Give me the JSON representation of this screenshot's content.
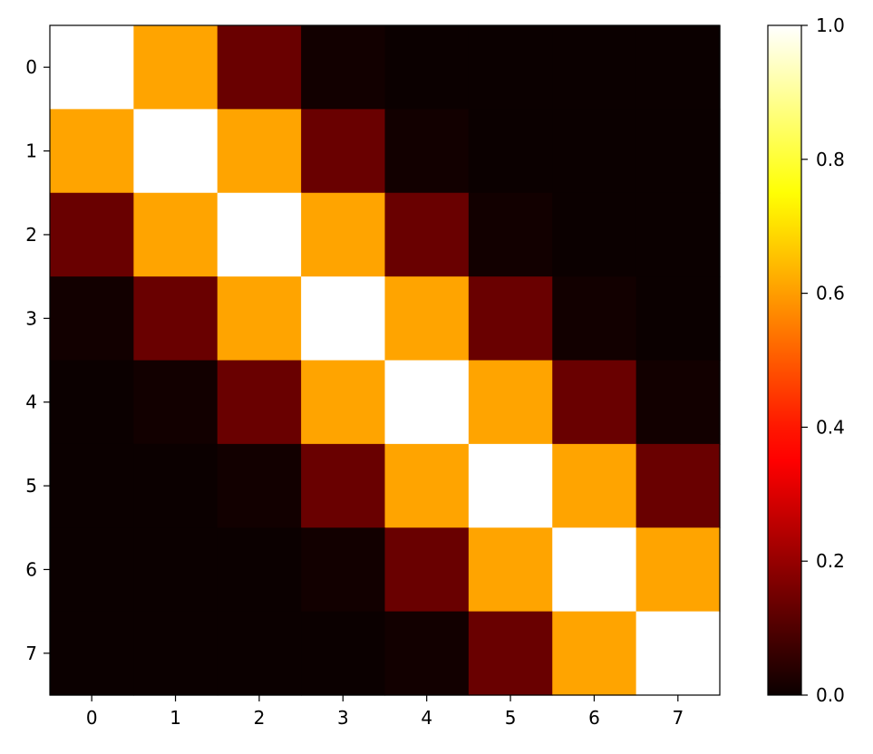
{
  "chart_data": {
    "type": "heatmap",
    "colormap": "hot",
    "x_ticks": [
      "0",
      "1",
      "2",
      "3",
      "4",
      "5",
      "6",
      "7"
    ],
    "y_ticks": [
      "0",
      "1",
      "2",
      "3",
      "4",
      "5",
      "6",
      "7"
    ],
    "colorbar": {
      "range": [
        0.0,
        1.0
      ],
      "ticks": [
        "0.0",
        "0.2",
        "0.4",
        "0.6",
        "0.8",
        "1.0"
      ]
    },
    "values": [
      [
        1.0,
        0.61,
        0.135,
        0.011,
        0.0003,
        0.0,
        0.0,
        0.0
      ],
      [
        0.61,
        1.0,
        0.61,
        0.135,
        0.011,
        0.0003,
        0.0,
        0.0
      ],
      [
        0.135,
        0.61,
        1.0,
        0.61,
        0.135,
        0.011,
        0.0003,
        0.0
      ],
      [
        0.011,
        0.135,
        0.61,
        1.0,
        0.61,
        0.135,
        0.011,
        0.0003
      ],
      [
        0.0003,
        0.011,
        0.135,
        0.61,
        1.0,
        0.61,
        0.135,
        0.011
      ],
      [
        0.0,
        0.0003,
        0.011,
        0.135,
        0.61,
        1.0,
        0.61,
        0.135
      ],
      [
        0.0,
        0.0,
        0.0003,
        0.011,
        0.135,
        0.61,
        1.0,
        0.61
      ],
      [
        0.0,
        0.0,
        0.0,
        0.0003,
        0.011,
        0.135,
        0.61,
        1.0
      ]
    ]
  }
}
